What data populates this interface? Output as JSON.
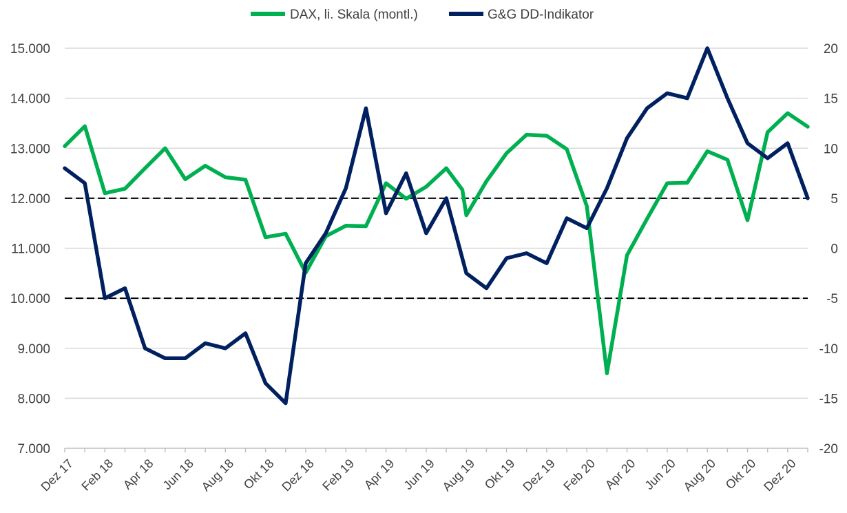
{
  "chart_data": {
    "type": "line",
    "legend": {
      "position": "top",
      "entries": [
        {
          "label": "DAX, li. Skala (montl.)",
          "color": "#00B050"
        },
        {
          "label": "G&G DD-Indikator",
          "color": "#002060"
        }
      ]
    },
    "x": [
      "Dez 17",
      "Jan 18",
      "Feb 18",
      "Mär 18",
      "Apr 18",
      "Mai 18",
      "Jun 18",
      "Jul 18",
      "Aug 18",
      "Sep 18",
      "Okt 18",
      "Nov 18",
      "Dez 18",
      "Jan 19",
      "Feb 19",
      "Mär 19",
      "Apr 19",
      "Mai 19",
      "Jun 19",
      "Jul 19",
      "Aug 19",
      "Sep 19",
      "Okt 19",
      "Nov 19",
      "Dez 19",
      "Jan 20",
      "Feb 20",
      "Mär 20",
      "Apr 20",
      "Mai 20",
      "Jun 20",
      "Jul 20",
      "Aug 20",
      "Sep 20",
      "Okt 20",
      "Nov 20",
      "Dez 20",
      "Jan 21"
    ],
    "x_tick_labels": [
      "Dez 17",
      "Feb 18",
      "Apr 18",
      "Jun 18",
      "Aug 18",
      "Okt 18",
      "Dez 18",
      "Feb 19",
      "Apr 19",
      "Jun 19",
      "Aug 19",
      "Okt 19",
      "Dez 19",
      "Feb 20",
      "Apr 20",
      "Jun 20",
      "Aug 20",
      "Okt 20",
      "Dez 20"
    ],
    "x_tick_every": 2,
    "y_left": {
      "min": 7000,
      "max": 15000,
      "step": 1000,
      "tick_labels": [
        "7.000",
        "8.000",
        "9.000",
        "10.000",
        "11.000",
        "12.000",
        "13.000",
        "14.000",
        "15.000"
      ]
    },
    "y_right": {
      "min": -20,
      "max": 20,
      "step": 5,
      "tick_labels": [
        "-20",
        "-15",
        "-10",
        "-5",
        "0",
        "5",
        "10",
        "15",
        "20"
      ]
    },
    "grid": true,
    "reference_lines_right_axis": [
      5,
      -5
    ],
    "series": [
      {
        "name": "DAX, li. Skala (montl.)",
        "axis": "left",
        "color": "#00B050",
        "points": [
          [
            0,
            13040
          ],
          [
            1,
            13440
          ],
          [
            2,
            12100
          ],
          [
            3,
            12190
          ],
          [
            4,
            12600
          ],
          [
            5,
            13000
          ],
          [
            6,
            12380
          ],
          [
            7,
            12650
          ],
          [
            8,
            12420
          ],
          [
            9,
            12370
          ],
          [
            10,
            11220
          ],
          [
            11,
            11290
          ],
          [
            12,
            10510
          ],
          [
            13,
            11240
          ],
          [
            14,
            11450
          ],
          [
            15,
            11440
          ],
          [
            16,
            12300
          ],
          [
            17,
            11990
          ],
          [
            18,
            12230
          ],
          [
            19,
            12600
          ],
          [
            19.8,
            12170
          ],
          [
            20,
            11660
          ],
          [
            21,
            12340
          ],
          [
            22,
            12900
          ],
          [
            23,
            13270
          ],
          [
            24,
            13250
          ],
          [
            25,
            12980
          ],
          [
            26,
            11840
          ],
          [
            27,
            8500
          ],
          [
            28,
            10860
          ],
          [
            29,
            11590
          ],
          [
            30,
            12300
          ],
          [
            31,
            12310
          ],
          [
            32,
            12940
          ],
          [
            33,
            12770
          ],
          [
            34,
            11560
          ],
          [
            35,
            13320
          ],
          [
            36,
            13700
          ],
          [
            37,
            13430
          ]
        ]
      },
      {
        "name": "G&G DD-Indikator",
        "axis": "right",
        "color": "#002060",
        "points": [
          [
            0,
            8
          ],
          [
            1,
            6.5
          ],
          [
            2,
            -5
          ],
          [
            3,
            -4
          ],
          [
            4,
            -10
          ],
          [
            5,
            -11
          ],
          [
            6,
            -11
          ],
          [
            7,
            -9.5
          ],
          [
            8,
            -10
          ],
          [
            9,
            -8.5
          ],
          [
            10,
            -13.5
          ],
          [
            11,
            -15.5
          ],
          [
            12,
            -1.5
          ],
          [
            13,
            1.5
          ],
          [
            14,
            6
          ],
          [
            15,
            14
          ],
          [
            16,
            3.5
          ],
          [
            17,
            7.5
          ],
          [
            18,
            1.5
          ],
          [
            19,
            5
          ],
          [
            20,
            -2.5
          ],
          [
            21,
            -4
          ],
          [
            22,
            -1
          ],
          [
            23,
            -0.5
          ],
          [
            24,
            -1.5
          ],
          [
            25,
            3
          ],
          [
            26,
            2
          ],
          [
            27,
            6
          ],
          [
            28,
            11
          ],
          [
            29,
            14
          ],
          [
            30,
            15.5
          ],
          [
            31,
            15
          ],
          [
            32,
            20
          ],
          [
            33,
            15
          ],
          [
            34,
            10.5
          ],
          [
            35,
            9
          ],
          [
            36,
            10.5
          ],
          [
            37,
            5
          ]
        ]
      }
    ]
  }
}
